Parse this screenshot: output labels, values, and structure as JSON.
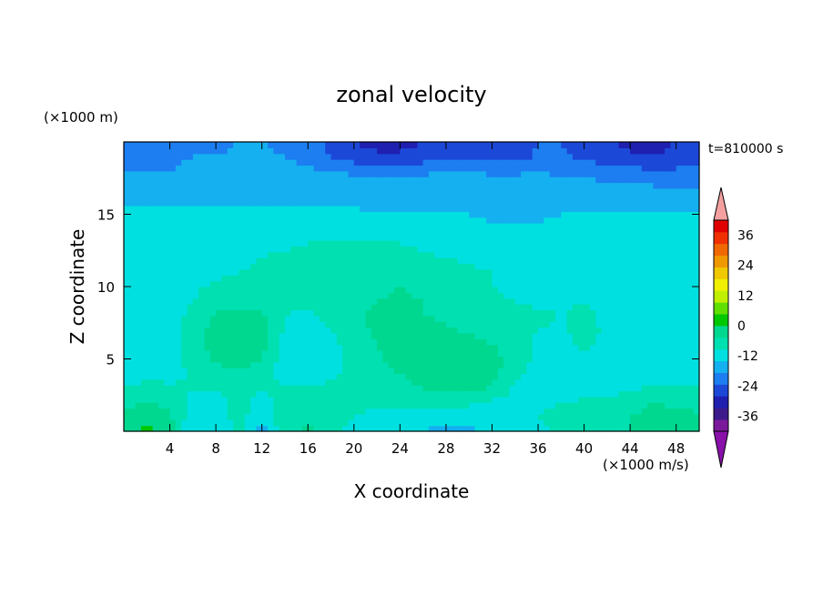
{
  "chart_data": {
    "type": "heatmap",
    "title": "zonal velocity",
    "xlabel": "X coordinate",
    "ylabel": "Z coordinate",
    "x_unit": "(×1000 m/s)",
    "y_unit": "(×1000 m)",
    "time_label": "t=810000 s",
    "xlim": [
      0,
      50
    ],
    "ylim": [
      0,
      20
    ],
    "x_ticks": [
      4,
      8,
      12,
      16,
      20,
      24,
      28,
      32,
      36,
      40,
      44,
      48
    ],
    "y_ticks": [
      5,
      10,
      15
    ],
    "colorbar": {
      "min": -42,
      "max": 42,
      "step": 6,
      "labels": [
        36,
        24,
        12,
        0,
        -12,
        -24,
        -36
      ],
      "colors": [
        "#7a1a9a",
        "#3c1a8c",
        "#1f1fb0",
        "#1c48d8",
        "#1c7ef0",
        "#14b0f0",
        "#00e0e0",
        "#00e0b0",
        "#00d890",
        "#00c800",
        "#60e000",
        "#c0f000",
        "#f0f000",
        "#f0c800",
        "#f09800",
        "#f06800",
        "#f03000",
        "#e00000"
      ],
      "over_color": "#f4a0a0",
      "under_color": "#8a10aa"
    },
    "field": {
      "description_of_values": "zonal velocity field u(x,z), values in colorbar units",
      "x": [
        0,
        2,
        4,
        6,
        8,
        10,
        12,
        14,
        16,
        18,
        20,
        22,
        24,
        26,
        28,
        30,
        32,
        34,
        36,
        38,
        40,
        42,
        44,
        46,
        48,
        50
      ],
      "z": [
        0,
        1,
        2,
        3,
        4,
        5,
        6,
        7,
        8,
        9,
        10,
        11,
        12,
        13,
        14,
        15,
        16,
        17,
        18,
        19,
        20
      ],
      "u": [
        [
          10,
          13,
          9,
          -6,
          -6,
          2,
          -8,
          4,
          7,
          2,
          -2,
          -4,
          -6,
          -6,
          -9,
          -8,
          -4,
          -4,
          -2,
          2,
          3,
          4,
          6,
          8,
          9,
          8
        ],
        [
          8,
          11,
          7,
          -4,
          -5,
          3,
          -6,
          5,
          5,
          3,
          0,
          -2,
          -3,
          -3,
          -4,
          -4,
          -2,
          -2,
          0,
          2,
          3,
          4,
          6,
          8,
          8,
          7
        ],
        [
          4,
          6,
          4,
          -2,
          -3,
          3,
          -3,
          4,
          3,
          4,
          2,
          1,
          1,
          2,
          2,
          1,
          -1,
          -2,
          -1,
          0,
          1,
          2,
          3,
          6,
          5,
          4
        ],
        [
          0,
          2,
          1,
          0,
          0,
          3,
          1,
          1,
          1,
          2,
          3,
          4,
          4,
          6,
          7,
          8,
          5,
          -1,
          -3,
          -3,
          -3,
          -2,
          -1,
          1,
          1,
          0
        ],
        [
          -3,
          -2,
          -2,
          1,
          4,
          5,
          3,
          -4,
          -4,
          -2,
          2,
          4,
          6,
          9,
          10,
          11,
          8,
          2,
          -3,
          -4,
          -4,
          -3,
          -2,
          -2,
          -3,
          -3
        ],
        [
          -4,
          -4,
          -3,
          2,
          7,
          8,
          6,
          -3,
          -5,
          -3,
          2,
          5,
          8,
          11,
          12,
          11,
          8,
          4,
          -2,
          -4,
          -3,
          -3,
          -2,
          -3,
          -4,
          -4
        ],
        [
          -4,
          -4,
          -3,
          3,
          9,
          10,
          8,
          -2,
          -4,
          -2,
          3,
          6,
          9,
          11,
          10,
          8,
          6,
          3,
          -1,
          -2,
          2,
          -2,
          -2,
          -3,
          -4,
          -5
        ],
        [
          -5,
          -5,
          -3,
          3,
          8,
          10,
          9,
          -1,
          -3,
          0,
          4,
          7,
          8,
          8,
          7,
          5,
          4,
          2,
          0,
          -1,
          2,
          -1,
          -2,
          -3,
          -4,
          -6
        ],
        [
          -5,
          -5,
          -3,
          2,
          7,
          9,
          7,
          0,
          -1,
          2,
          5,
          7,
          7,
          6,
          5,
          3,
          2,
          1,
          1,
          0,
          1,
          -1,
          -2,
          -3,
          -4,
          -6
        ],
        [
          -5,
          -5,
          -3,
          0,
          3,
          4,
          3,
          1,
          1,
          3,
          5,
          6,
          7,
          6,
          4,
          2,
          1,
          0,
          -1,
          -1,
          0,
          -1,
          -2,
          -3,
          -4,
          -5
        ],
        [
          -4,
          -4,
          -3,
          -1,
          1,
          2,
          2,
          1,
          1,
          2,
          4,
          5,
          6,
          5,
          3,
          2,
          0,
          -1,
          -2,
          -2,
          -1,
          -1,
          -2,
          -3,
          -3,
          -4
        ],
        [
          -4,
          -4,
          -3,
          -2,
          -1,
          0,
          1,
          1,
          1,
          2,
          3,
          3,
          3,
          3,
          2,
          1,
          0,
          -2,
          -3,
          -3,
          -2,
          -1,
          -1,
          -2,
          -3,
          -3
        ],
        [
          -4,
          -4,
          -3,
          -2,
          -2,
          -1,
          0,
          1,
          1,
          2,
          2,
          2,
          2,
          1,
          0,
          -1,
          -2,
          -3,
          -3,
          -3,
          -3,
          -2,
          -1,
          -1,
          -2,
          -3
        ],
        [
          -4,
          -4,
          -4,
          -3,
          -3,
          -2,
          -1,
          -1,
          0,
          0,
          1,
          0,
          0,
          -1,
          -2,
          -3,
          -3,
          -4,
          -4,
          -4,
          -3,
          -3,
          -2,
          -2,
          -3,
          -3
        ],
        [
          -4,
          -4,
          -4,
          -4,
          -3,
          -3,
          -3,
          -3,
          -2,
          -2,
          -2,
          -2,
          -3,
          -3,
          -4,
          -4,
          -5,
          -5,
          -5,
          -4,
          -4,
          -4,
          -4,
          -4,
          -4,
          -4
        ],
        [
          -5,
          -5,
          -5,
          -5,
          -5,
          -5,
          -5,
          -5,
          -5,
          -5,
          -5,
          -6,
          -6,
          -6,
          -6,
          -6,
          -7,
          -7,
          -7,
          -6,
          -6,
          -6,
          -6,
          -6,
          -6,
          -6
        ],
        [
          -7,
          -7,
          -7,
          -7,
          -7,
          -7,
          -7,
          -7,
          -7,
          -7,
          -7,
          -8,
          -8,
          -8,
          -8,
          -8,
          -8,
          -8,
          -8,
          -8,
          -7,
          -7,
          -7,
          -7,
          -7,
          -7
        ],
        [
          -10,
          -10,
          -10,
          -10,
          -9,
          -9,
          -9,
          -9,
          -9,
          -9,
          -9,
          -9,
          -9,
          -9,
          -9,
          -9,
          -9,
          -9,
          -9,
          -10,
          -10,
          -11,
          -12,
          -12,
          -13,
          -13
        ],
        [
          -12,
          -12,
          -12,
          -11,
          -11,
          -10,
          -10,
          -10,
          -11,
          -12,
          -13,
          -14,
          -14,
          -13,
          -12,
          -12,
          -13,
          -13,
          -12,
          -13,
          -14,
          -15,
          -16,
          -17,
          -17,
          -16
        ],
        [
          -13,
          -13,
          -13,
          -12,
          -12,
          -11,
          -11,
          -12,
          -14,
          -18,
          -21,
          -23,
          -23,
          -21,
          -19,
          -20,
          -21,
          -20,
          -17,
          -17,
          -19,
          -21,
          -23,
          -24,
          -22,
          -19
        ],
        [
          -14,
          -14,
          -14,
          -13,
          -13,
          -12,
          -12,
          -13,
          -15,
          -20,
          -24,
          -26,
          -26,
          -24,
          -22,
          -23,
          -24,
          -22,
          -18,
          -18,
          -20,
          -23,
          -26,
          -27,
          -24,
          -20
        ]
      ]
    }
  }
}
